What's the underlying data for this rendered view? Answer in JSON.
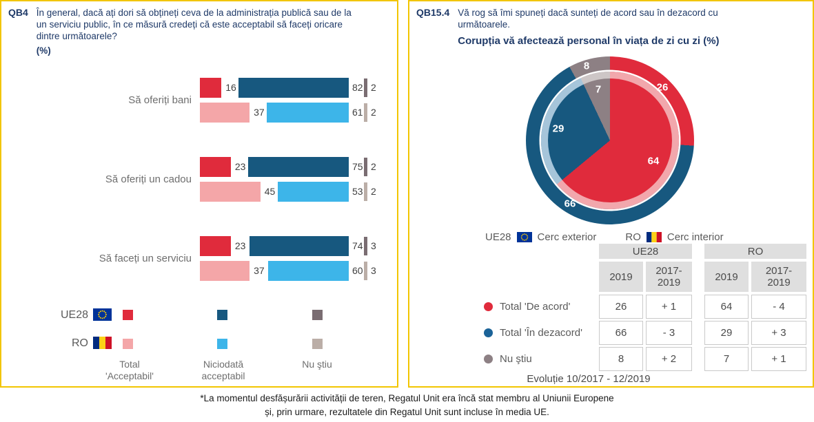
{
  "colors": {
    "border": "#F2C500",
    "navy": "#1F3A68",
    "red": "#E02B3C",
    "pink": "#F4A6A8",
    "dark_blue": "#17587F",
    "light_blue": "#3DB5E9",
    "grey_dark": "#7A6D72",
    "grey_light": "#BBAEA7",
    "pie_grey": "#8D8084",
    "ring_pink": "#F2A7AC",
    "ring_blue": "#A6C5DA",
    "ring_grey": "#CDC6C6",
    "dot_blue": "#1B6398",
    "label_grey": "#6E6E6E",
    "value_grey": "#404040",
    "table_header_bg": "#DFDFDF",
    "cell_border": "#C9C9C9",
    "eu_flag_bg": "#003399",
    "eu_flag_stars": "#FFCC00",
    "ro_flag_blue": "#002B7F",
    "ro_flag_yellow": "#FCD116",
    "ro_flag_red": "#CE1126"
  },
  "left": {
    "code": "QB4",
    "question_lines": [
      "În general, dacă ați dori să obțineți ceva de la administrația publică sau de la",
      "un serviciu public, în ce măsură credeți că este acceptabil să faceți oricare",
      "dintre următoarele?"
    ],
    "pct": "(%)",
    "legend": {
      "ue28": "UE28",
      "ro": "RO",
      "col1": [
        "Total",
        "'Acceptabil'"
      ],
      "col2": [
        "Niciodată",
        "acceptabil"
      ],
      "col3": [
        "Nu ştiu"
      ]
    }
  },
  "right": {
    "code": "QB15.4",
    "question_lines": [
      "Vă rog să îmi spuneți dacă sunteți de acord sau în dezacord cu",
      "următoarele."
    ],
    "subtitle": "Corupția vă afectează personal în viața de zi cu zi (%)",
    "legend": {
      "outer_label": "UE28",
      "outer_text": "Cerc exterior",
      "inner_label": "RO",
      "inner_text": "Cerc interior"
    },
    "table": {
      "group_headers": [
        "UE28",
        "RO"
      ],
      "col_headers": [
        "2019",
        "2017-2019"
      ],
      "rows": [
        {
          "label": "Total 'De acord'",
          "dot": "red",
          "ue28_2019": "26",
          "ue28_change": "+ 1",
          "ro_2019": "64",
          "ro_change": "- 4"
        },
        {
          "label": "Total 'În dezacord'",
          "dot": "blue",
          "ue28_2019": "66",
          "ue28_change": "- 3",
          "ro_2019": "29",
          "ro_change": "+ 3"
        },
        {
          "label": "Nu ştiu",
          "dot": "grey",
          "ue28_2019": "8",
          "ue28_change": "+ 2",
          "ro_2019": "7",
          "ro_change": "+ 1"
        }
      ],
      "footer": "Evoluție 10/2017 - 12/2019"
    }
  },
  "chart_data": [
    {
      "type": "bar",
      "title": "QB4 În general, dacă ați dori să obțineți ceva de la administrația publică sau de la un serviciu public, în ce măsură credeți că este acceptabil să faceți oricare dintre următoarele? (%)",
      "orientation": "horizontal-grouped",
      "categories": [
        "Să oferiți bani",
        "Să oferiți un cadou",
        "Să faceți un serviciu"
      ],
      "series": [
        {
          "name": "UE28 - Total 'Acceptabil'",
          "values": [
            16,
            23,
            23
          ]
        },
        {
          "name": "UE28 - Niciodată acceptabil",
          "values": [
            82,
            75,
            74
          ]
        },
        {
          "name": "UE28 - Nu ştiu",
          "values": [
            2,
            2,
            3
          ]
        },
        {
          "name": "RO - Total 'Acceptabil'",
          "values": [
            37,
            45,
            37
          ]
        },
        {
          "name": "RO - Niciodată acceptabil",
          "values": [
            61,
            53,
            60
          ]
        },
        {
          "name": "RO - Nu ştiu",
          "values": [
            2,
            2,
            3
          ]
        }
      ],
      "xlim": [
        0,
        100
      ],
      "grid": false,
      "legend_position": "bottom"
    },
    {
      "type": "pie",
      "title": "QB15.4 Corupția vă afectează personal în viața de zi cu zi (%)",
      "rings": [
        {
          "name": "UE28 (Cerc exterior)",
          "labels": [
            "Total 'De acord'",
            "Total 'În dezacord'",
            "Nu ştiu"
          ],
          "values": [
            26,
            66,
            8
          ]
        },
        {
          "name": "RO (Cerc interior)",
          "labels": [
            "Total 'De acord'",
            "Total 'În dezacord'",
            "Nu ştiu"
          ],
          "values": [
            64,
            29,
            7
          ]
        }
      ],
      "start_angle_deg": 0,
      "direction": "clockwise"
    }
  ],
  "footnote_lines": [
    "*La momentul desfășurării activității de teren, Regatul Unit era încă stat membru al Uniunii Europene",
    "și, prin urmare, rezultatele din Regatul Unit sunt incluse în media UE."
  ]
}
